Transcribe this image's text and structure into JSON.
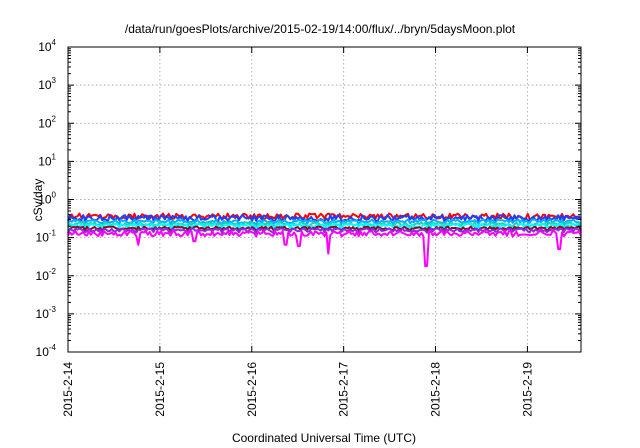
{
  "chart_data": {
    "type": "line",
    "title": "/data/run/goesPlots/archive/2015-02-19/14:00/flux/../bryn/5daysMoon.plot",
    "xlabel": "Coordinated Universal Time (UTC)",
    "ylabel": "cSv/day",
    "yscale": "log",
    "ylim": [
      0.0001,
      10000
    ],
    "xlim": [
      "2015-02-14T00:00",
      "2015-02-19T14:00"
    ],
    "grid": true,
    "y_ticks": [
      {
        "base": "10",
        "exp": "-4"
      },
      {
        "base": "10",
        "exp": "-3"
      },
      {
        "base": "10",
        "exp": "-2"
      },
      {
        "base": "10",
        "exp": "-1"
      },
      {
        "base": "10",
        "exp": "0"
      },
      {
        "base": "10",
        "exp": "1"
      },
      {
        "base": "10",
        "exp": "2"
      },
      {
        "base": "10",
        "exp": "3"
      },
      {
        "base": "10",
        "exp": "4"
      }
    ],
    "x_ticks": [
      "2015-2-14",
      "2015-2-15",
      "2015-2-16",
      "2015-2-17",
      "2015-2-18",
      "2015-2-19"
    ],
    "series": [
      {
        "color": "#ff0000",
        "base": 0.37,
        "amp": 0.06
      },
      {
        "color": "#1f3fff",
        "base": 0.33,
        "amp": 0.06
      },
      {
        "color": "#00b0ff",
        "base": 0.27,
        "amp": 0.03
      },
      {
        "color": "#20d0b0",
        "base": 0.23,
        "amp": 0.025
      },
      {
        "color": "#00ffff",
        "base": 0.21,
        "amp": 0.02
      },
      {
        "color": "#8b0a1a",
        "base": 0.18,
        "amp": 0.015
      },
      {
        "color": "#8a2be2",
        "base": 0.16,
        "amp": 0.015
      },
      {
        "color": "#ff00ff",
        "base": 0.13,
        "amp": 0.02,
        "dips": [
          {
            "x": "2015-02-14T18:20",
            "y": 0.065
          },
          {
            "x": "2015-02-15T09:00",
            "y": 0.08
          },
          {
            "x": "2015-02-16T08:45",
            "y": 0.065
          },
          {
            "x": "2015-02-16T12:10",
            "y": 0.06
          },
          {
            "x": "2015-02-16T20:00",
            "y": 0.038
          },
          {
            "x": "2015-02-17T21:40",
            "y": 0.018
          },
          {
            "x": "2015-02-19T08:10",
            "y": 0.05
          }
        ]
      }
    ]
  }
}
